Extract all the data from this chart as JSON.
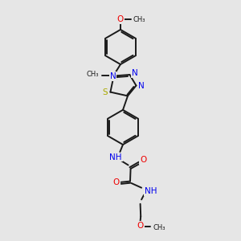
{
  "bg_color": "#e6e6e6",
  "bond_color": "#1a1a1a",
  "nitrogen_color": "#0000ee",
  "oxygen_color": "#ee0000",
  "sulfur_color": "#aaaa00",
  "line_width": 1.4,
  "figsize": [
    3.0,
    3.0
  ],
  "dpi": 100,
  "xlim": [
    0,
    10
  ],
  "ylim": [
    0,
    10
  ]
}
